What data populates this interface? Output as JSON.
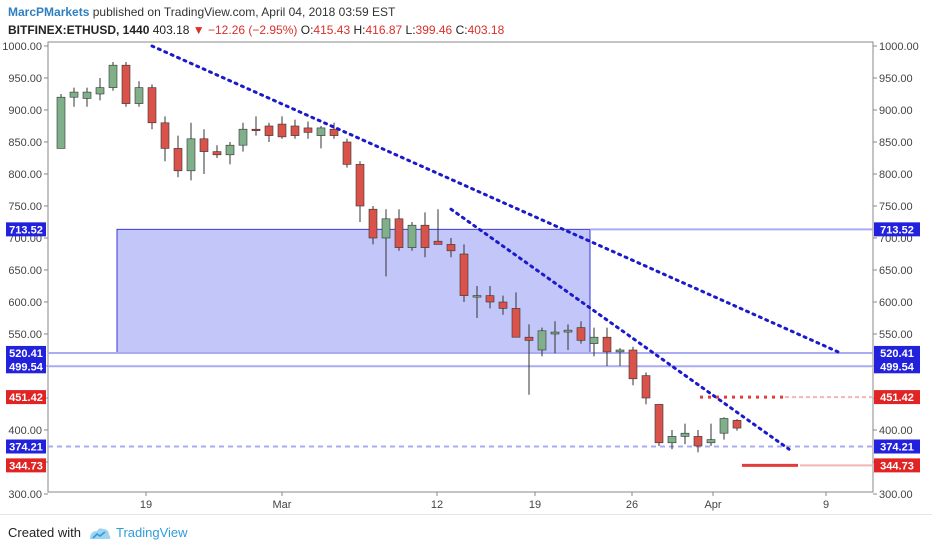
{
  "header": {
    "author": "MarcPMarkets",
    "published_text": "published on TradingView.com, April 04, 2018 03:59 EST",
    "symbol": "BITFINEX:ETHUSD, 1440",
    "last": "403.18",
    "change": "−12.26 (−2.95%)",
    "open_label": "O:",
    "open": "415.43",
    "high_label": "H:",
    "high": "416.87",
    "low_label": "L:",
    "low": "399.46",
    "close_label": "C:",
    "close": "403.18"
  },
  "colors": {
    "up": "#7fb08a",
    "down": "#d9534a",
    "trend": "#1a1acc",
    "zone_fill": "#c3c6f8",
    "zone_stroke": "#3b3bd6",
    "level_blue": "#a9acf3",
    "level_red": "#e43c3c",
    "tag_blue": "#2222dd",
    "tag_red": "#e02424"
  },
  "chart_data": {
    "type": "candlestick",
    "title": "BITFINEX:ETHUSD, 1440",
    "ylim": [
      300,
      1000
    ],
    "y_ticks": [
      "1000.00",
      "950.00",
      "900.00",
      "850.00",
      "800.00",
      "750.00",
      "700.00",
      "650.00",
      "600.00",
      "550.00",
      "500.00",
      "450.00",
      "400.00",
      "350.00",
      "300.00"
    ],
    "x_ticks": [
      "19",
      "Mar",
      "12",
      "19",
      "26",
      "Apr",
      "9"
    ],
    "candles": [
      {
        "o": 840,
        "h": 925,
        "l": 840,
        "c": 920
      },
      {
        "o": 920,
        "h": 935,
        "l": 905,
        "c": 928
      },
      {
        "o": 918,
        "h": 935,
        "l": 905,
        "c": 928
      },
      {
        "o": 925,
        "h": 950,
        "l": 915,
        "c": 935
      },
      {
        "o": 935,
        "h": 975,
        "l": 930,
        "c": 970
      },
      {
        "o": 970,
        "h": 975,
        "l": 905,
        "c": 910
      },
      {
        "o": 910,
        "h": 945,
        "l": 905,
        "c": 935
      },
      {
        "o": 935,
        "h": 940,
        "l": 870,
        "c": 880
      },
      {
        "o": 880,
        "h": 890,
        "l": 820,
        "c": 840
      },
      {
        "o": 840,
        "h": 860,
        "l": 795,
        "c": 805
      },
      {
        "o": 805,
        "h": 880,
        "l": 790,
        "c": 855
      },
      {
        "o": 855,
        "h": 870,
        "l": 800,
        "c": 835
      },
      {
        "o": 835,
        "h": 845,
        "l": 825,
        "c": 830
      },
      {
        "o": 830,
        "h": 850,
        "l": 815,
        "c": 845
      },
      {
        "o": 845,
        "h": 880,
        "l": 835,
        "c": 870
      },
      {
        "o": 870,
        "h": 890,
        "l": 860,
        "c": 868
      },
      {
        "o": 875,
        "h": 880,
        "l": 850,
        "c": 860
      },
      {
        "o": 878,
        "h": 890,
        "l": 855,
        "c": 858
      },
      {
        "o": 875,
        "h": 885,
        "l": 855,
        "c": 860
      },
      {
        "o": 872,
        "h": 882,
        "l": 855,
        "c": 865
      },
      {
        "o": 860,
        "h": 875,
        "l": 840,
        "c": 872
      },
      {
        "o": 870,
        "h": 880,
        "l": 855,
        "c": 860
      },
      {
        "o": 850,
        "h": 855,
        "l": 810,
        "c": 815
      },
      {
        "o": 815,
        "h": 820,
        "l": 725,
        "c": 750
      },
      {
        "o": 745,
        "h": 750,
        "l": 690,
        "c": 700
      },
      {
        "o": 700,
        "h": 745,
        "l": 640,
        "c": 730
      },
      {
        "o": 730,
        "h": 745,
        "l": 680,
        "c": 685
      },
      {
        "o": 685,
        "h": 725,
        "l": 680,
        "c": 720
      },
      {
        "o": 720,
        "h": 740,
        "l": 670,
        "c": 685
      },
      {
        "o": 695,
        "h": 745,
        "l": 690,
        "c": 690
      },
      {
        "o": 690,
        "h": 700,
        "l": 670,
        "c": 680
      },
      {
        "o": 675,
        "h": 690,
        "l": 600,
        "c": 610
      },
      {
        "o": 610,
        "h": 625,
        "l": 575,
        "c": 610
      },
      {
        "o": 610,
        "h": 625,
        "l": 590,
        "c": 600
      },
      {
        "o": 600,
        "h": 610,
        "l": 580,
        "c": 590
      },
      {
        "o": 590,
        "h": 615,
        "l": 545,
        "c": 545
      },
      {
        "o": 545,
        "h": 565,
        "l": 455,
        "c": 540
      },
      {
        "o": 525,
        "h": 560,
        "l": 515,
        "c": 555
      },
      {
        "o": 550,
        "h": 570,
        "l": 520,
        "c": 553
      },
      {
        "o": 553,
        "h": 565,
        "l": 525,
        "c": 556
      },
      {
        "o": 560,
        "h": 570,
        "l": 535,
        "c": 540
      },
      {
        "o": 535,
        "h": 560,
        "l": 515,
        "c": 545
      },
      {
        "o": 545,
        "h": 560,
        "l": 500,
        "c": 522
      },
      {
        "o": 522,
        "h": 528,
        "l": 500,
        "c": 525
      },
      {
        "o": 525,
        "h": 530,
        "l": 470,
        "c": 480
      },
      {
        "o": 485,
        "h": 490,
        "l": 440,
        "c": 450
      },
      {
        "o": 440,
        "h": 440,
        "l": 375,
        "c": 380
      },
      {
        "o": 380,
        "h": 400,
        "l": 370,
        "c": 390
      },
      {
        "o": 390,
        "h": 410,
        "l": 378,
        "c": 395
      },
      {
        "o": 390,
        "h": 400,
        "l": 365,
        "c": 375
      },
      {
        "o": 380,
        "h": 410,
        "l": 375,
        "c": 385
      },
      {
        "o": 395,
        "h": 420,
        "l": 385,
        "c": 418
      },
      {
        "o": 415,
        "h": 417,
        "l": 399,
        "c": 403
      }
    ],
    "horizontal_levels": [
      {
        "value": 713.52,
        "color": "blue",
        "label": "713.52"
      },
      {
        "value": 520.41,
        "color": "blue",
        "label": "520.41"
      },
      {
        "value": 499.54,
        "color": "blue",
        "label": "499.54"
      },
      {
        "value": 451.42,
        "color": "red",
        "label": "451.42"
      },
      {
        "value": 374.21,
        "color": "blue-dashed",
        "label": "374.21"
      },
      {
        "value": 344.73,
        "color": "red",
        "label": "344.73"
      }
    ],
    "zone": {
      "from_candle": 5,
      "to_candle": 42,
      "high": 713.52,
      "low": 520.41
    },
    "trendlines": [
      {
        "from_candle": 7,
        "from_value": 1000,
        "to_candle": 60,
        "to_value": 520
      },
      {
        "from_candle": 30,
        "from_value": 745,
        "to_candle": 56,
        "to_value": 370
      }
    ]
  },
  "footer": {
    "created_with": "Created with",
    "brand": "TradingView"
  }
}
